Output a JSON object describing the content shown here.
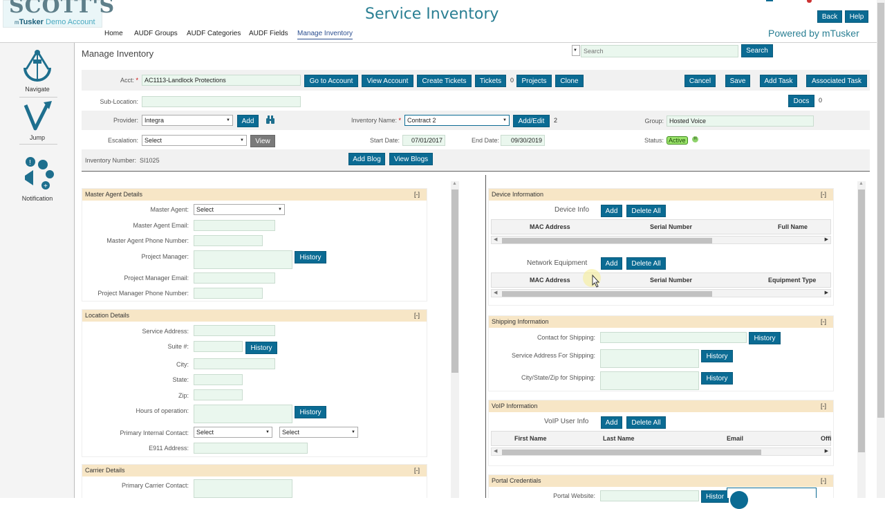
{
  "header": {
    "logo_big": "SCOTT'S",
    "logo_small_brand": "Tusker",
    "logo_small_rest": " Demo Account",
    "app_title": "Service Inventory",
    "nav": [
      "Home",
      "AUDF Groups",
      "AUDF Categories",
      "AUDF Fields",
      "Manage Inventory"
    ],
    "back_label": "Back",
    "help_label": "Help",
    "powered_by": "Powered by mTusker"
  },
  "sidebar": {
    "navigate": "Navigate",
    "jump": "Jump",
    "notification": "Notification"
  },
  "search": {
    "placeholder": "Search",
    "button": "Search"
  },
  "page_title": "Manage Inventory",
  "form": {
    "acct_label": "Acct:",
    "acct_value": "AC1113-Landlock Protections",
    "go_account": "Go to Account",
    "view_account": "View Account",
    "create_tickets": "Create Tickets",
    "tickets": "Tickets",
    "tickets_count": "0",
    "projects": "Projects",
    "clone": "Clone",
    "cancel": "Cancel",
    "save": "Save",
    "add_task": "Add Task",
    "associated_task": "Associated Task",
    "sub_location_label": "Sub-Location:",
    "docs": "Docs",
    "docs_count": "0",
    "provider_label": "Provider:",
    "provider_value": "Integra",
    "add": "Add",
    "inventory_name_label": "Inventory Name:",
    "inventory_name_value": "Contract 2",
    "add_edit": "Add/Edit",
    "add_edit_count": "2",
    "group_label": "Group:",
    "group_value": "Hosted Voice",
    "escalation_label": "Escalation:",
    "escalation_value": "Select",
    "view": "View",
    "start_date_label": "Start Date:",
    "start_date_value": "07/01/2017",
    "end_date_label": "End Date:",
    "end_date_value": "09/30/2019",
    "status_label": "Status:",
    "status_value": "Active",
    "inventory_number_label": "Inventory Number:",
    "inventory_number_value": "SI1025",
    "add_blog": "Add Blog",
    "view_blogs": "View Blogs"
  },
  "master_agent": {
    "title": "Master Agent Details",
    "toggle": "[-]",
    "master_agent_label": "Master Agent:",
    "master_agent_value": "Select",
    "email_label": "Master Agent Email:",
    "phone_label": "Master Agent Phone Number:",
    "pm_label": "Project Manager:",
    "history": "History",
    "pm_email_label": "Project Manager Email:",
    "pm_phone_label": "Project Manager Phone Number:"
  },
  "location": {
    "title": "Location Details",
    "toggle": "[-]",
    "service_address_label": "Service Address:",
    "suite_label": "Suite #:",
    "history": "History",
    "city_label": "City:",
    "state_label": "State:",
    "zip_label": "Zip:",
    "hours_label": "Hours of operation:",
    "primary_contact_label": "Primary Internal Contact:",
    "select1": "Select",
    "select2": "Select",
    "e911_label": "E911 Address:"
  },
  "carrier": {
    "title": "Carrier Details",
    "toggle": "[-]",
    "primary_carrier_label": "Primary Carrier Contact:"
  },
  "device": {
    "title": "Device Information",
    "toggle": "[-]",
    "device_info_label": "Device Info",
    "add": "Add",
    "delete_all": "Delete All",
    "columns": [
      "MAC Address",
      "Serial Number",
      "Full Name"
    ],
    "network_label": "Network Equipment",
    "network_columns": [
      "MAC Address",
      "Serial Number",
      "Equipment Type"
    ]
  },
  "shipping": {
    "title": "Shipping Information",
    "toggle": "[-]",
    "contact_label": "Contact for Shipping:",
    "address_label": "Service Address For Shipping:",
    "city_label": "City/State/Zip for Shipping:",
    "history": "History"
  },
  "voip": {
    "title": "VoIP Information",
    "toggle": "[-]",
    "user_info_label": "VoIP User Info",
    "add": "Add",
    "delete_all": "Delete All",
    "columns": [
      "First Name",
      "Last Name",
      "Email",
      "Offi"
    ]
  },
  "portal": {
    "title": "Portal Credentials",
    "toggle": "[-]",
    "website_label": "Portal Website:",
    "history": "Histor"
  },
  "colors": {
    "accent": "#0b6b93",
    "section_header": "#f7e6c6",
    "input_bg": "#eaf7ee",
    "title": "#2a7f93"
  }
}
